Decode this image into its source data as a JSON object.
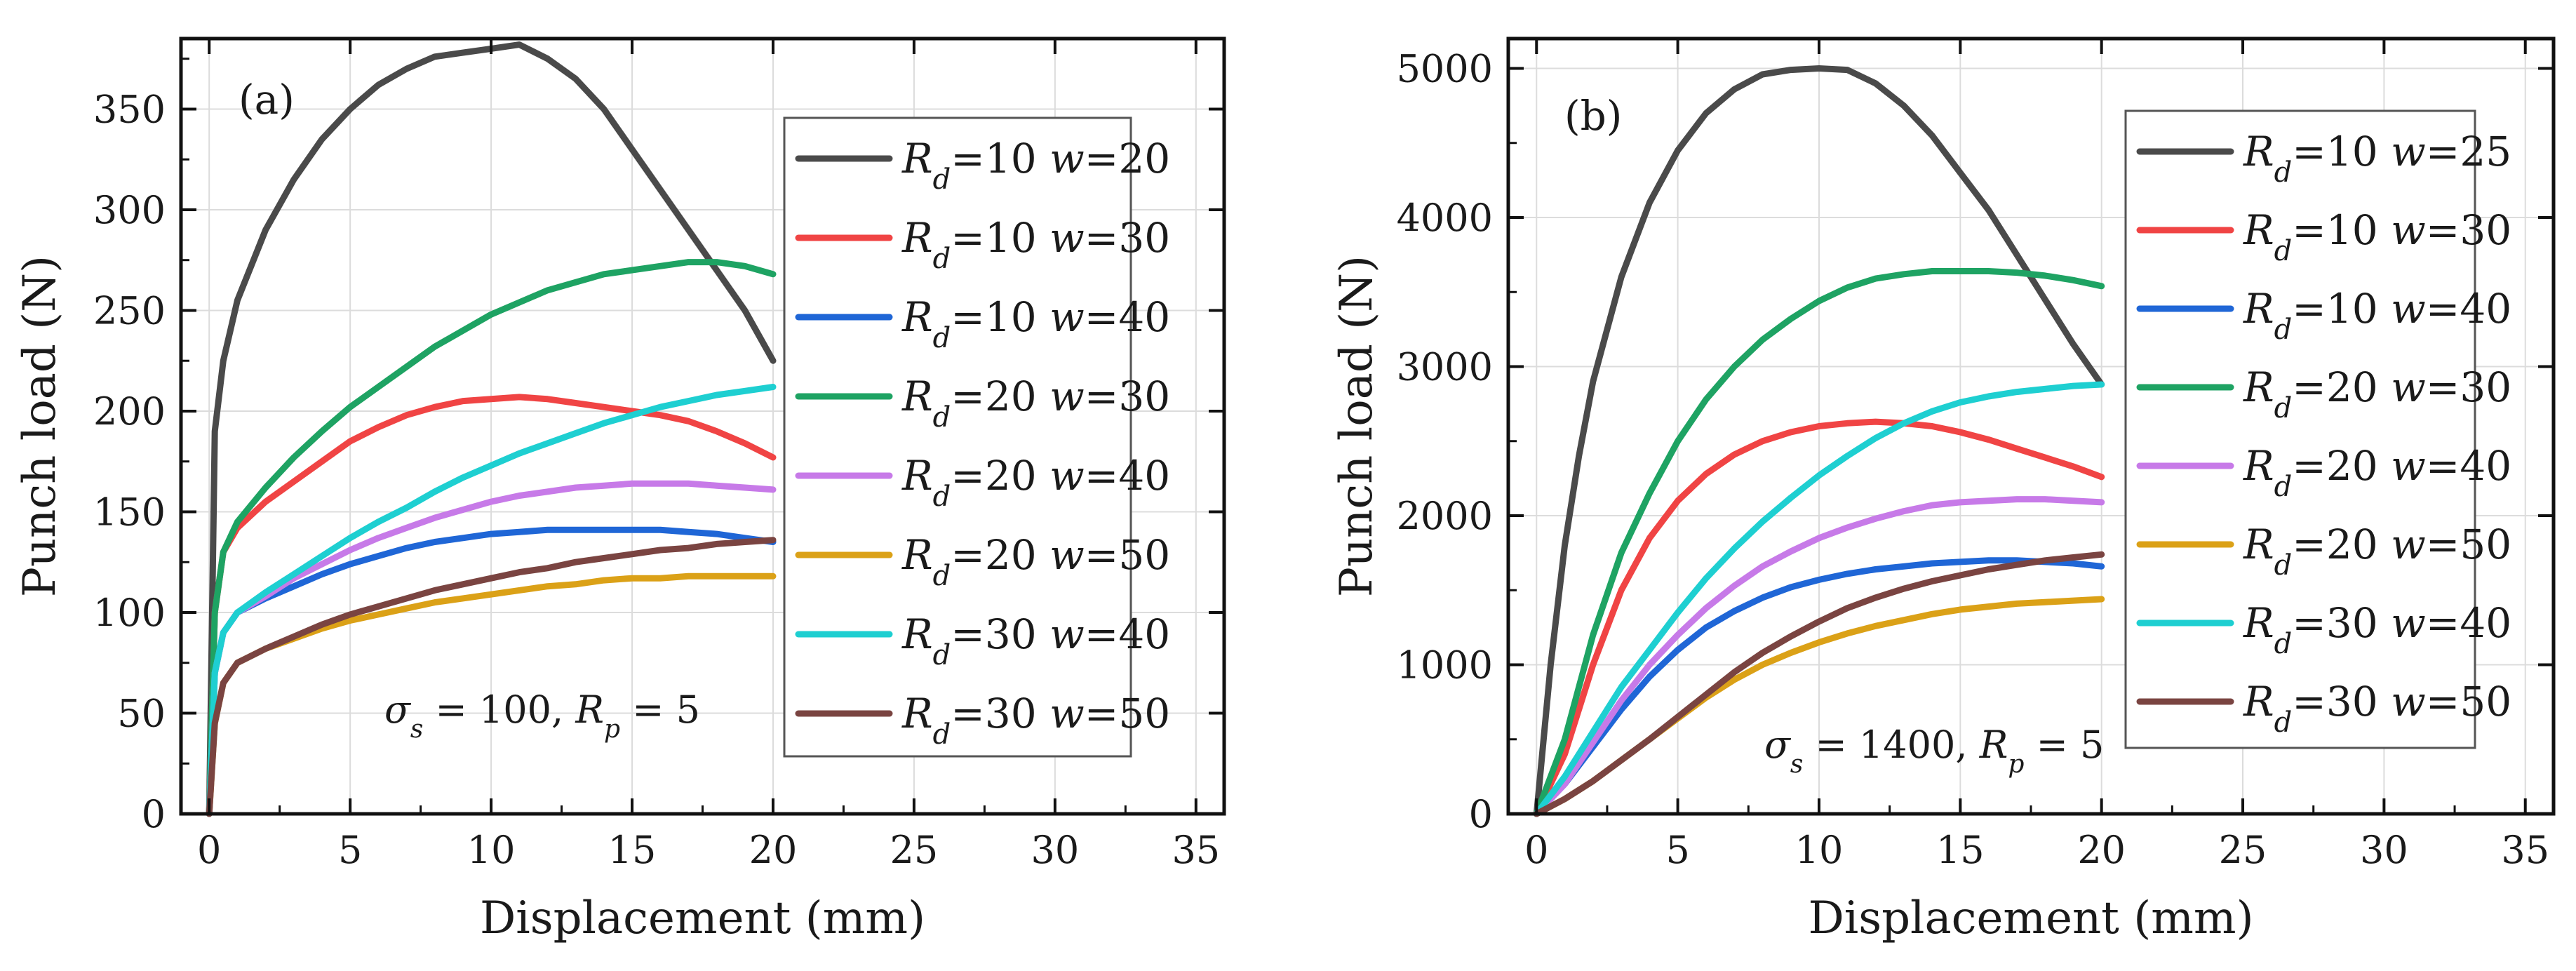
{
  "chart_data": [
    {
      "panel": "(a)",
      "type": "line",
      "xlabel": "Displacement (mm)",
      "ylabel": "Punch load (N)",
      "xlim": [
        -1,
        36
      ],
      "ylim": [
        0,
        385
      ],
      "xticks": [
        0,
        5,
        10,
        15,
        20,
        25,
        30,
        35
      ],
      "yticks": [
        0,
        50,
        100,
        150,
        200,
        250,
        300,
        350
      ],
      "grid": true,
      "legend_position": "right",
      "annotation": {
        "sigma": "σ",
        "sigma_sub": "s",
        "sigma_value": " = 100, ",
        "r": "R",
        "r_sub": "p",
        "r_value": " = 5"
      },
      "series": [
        {
          "rd": "R",
          "rd_sub": "d",
          "rd_value": "=10 ",
          "w": "w",
          "w_value": "=20",
          "color": "#4a4a4a",
          "x": [
            0,
            0.2,
            0.5,
            1,
            2,
            3,
            4,
            5,
            6,
            7,
            8,
            9,
            10,
            11,
            12,
            13,
            14,
            15,
            16,
            17,
            18,
            19,
            20
          ],
          "y": [
            0,
            190,
            225,
            255,
            290,
            315,
            335,
            350,
            362,
            370,
            376,
            378,
            380,
            382,
            375,
            365,
            350,
            330,
            310,
            290,
            270,
            250,
            225
          ]
        },
        {
          "rd": "R",
          "rd_sub": "d",
          "rd_value": "=10 ",
          "w": "w",
          "w_value": "=30",
          "color": "#f04444",
          "x": [
            0,
            0.2,
            0.5,
            1,
            2,
            3,
            4,
            5,
            6,
            7,
            8,
            9,
            10,
            11,
            12,
            13,
            14,
            15,
            16,
            17,
            18,
            19,
            20
          ],
          "y": [
            0,
            100,
            130,
            142,
            155,
            165,
            175,
            185,
            192,
            198,
            202,
            205,
            206,
            207,
            206,
            204,
            202,
            200,
            198,
            195,
            190,
            184,
            177
          ]
        },
        {
          "rd": "R",
          "rd_sub": "d",
          "rd_value": "=10 ",
          "w": "w",
          "w_value": "=40",
          "color": "#1f66d6",
          "x": [
            0,
            0.2,
            0.5,
            1,
            2,
            3,
            4,
            5,
            6,
            7,
            8,
            9,
            10,
            11,
            12,
            13,
            14,
            15,
            16,
            17,
            18,
            19,
            20
          ],
          "y": [
            0,
            70,
            90,
            100,
            107,
            113,
            119,
            124,
            128,
            132,
            135,
            137,
            139,
            140,
            141,
            141,
            141,
            141,
            141,
            140,
            139,
            137,
            135
          ]
        },
        {
          "rd": "R",
          "rd_sub": "d",
          "rd_value": "=20 ",
          "w": "w",
          "w_value": "=30",
          "color": "#1ea363",
          "x": [
            0,
            0.2,
            0.5,
            1,
            2,
            3,
            4,
            5,
            6,
            7,
            8,
            9,
            10,
            11,
            12,
            13,
            14,
            15,
            16,
            17,
            18,
            19,
            20
          ],
          "y": [
            0,
            100,
            130,
            145,
            162,
            177,
            190,
            202,
            212,
            222,
            232,
            240,
            248,
            254,
            260,
            264,
            268,
            270,
            272,
            274,
            274,
            272,
            268
          ]
        },
        {
          "rd": "R",
          "rd_sub": "d",
          "rd_value": "=20 ",
          "w": "w",
          "w_value": "=40",
          "color": "#c77ae8",
          "x": [
            0,
            0.2,
            0.5,
            1,
            2,
            3,
            4,
            5,
            6,
            7,
            8,
            9,
            10,
            11,
            12,
            13,
            14,
            15,
            16,
            17,
            18,
            19,
            20
          ],
          "y": [
            0,
            70,
            90,
            100,
            108,
            117,
            124,
            131,
            137,
            142,
            147,
            151,
            155,
            158,
            160,
            162,
            163,
            164,
            164,
            164,
            163,
            162,
            161
          ]
        },
        {
          "rd": "R",
          "rd_sub": "d",
          "rd_value": "=20 ",
          "w": "w",
          "w_value": "=50",
          "color": "#dba117",
          "x": [
            0,
            0.2,
            0.5,
            1,
            2,
            3,
            4,
            5,
            6,
            7,
            8,
            9,
            10,
            11,
            12,
            13,
            14,
            15,
            16,
            17,
            18,
            19,
            20
          ],
          "y": [
            0,
            45,
            65,
            75,
            82,
            87,
            92,
            96,
            99,
            102,
            105,
            107,
            109,
            111,
            113,
            114,
            116,
            117,
            117,
            118,
            118,
            118,
            118
          ]
        },
        {
          "rd": "R",
          "rd_sub": "d",
          "rd_value": "=30 ",
          "w": "w",
          "w_value": "=40",
          "color": "#1ecfd1",
          "x": [
            0,
            0.2,
            0.5,
            1,
            2,
            3,
            4,
            5,
            6,
            7,
            8,
            9,
            10,
            11,
            12,
            13,
            14,
            15,
            16,
            17,
            18,
            19,
            20
          ],
          "y": [
            0,
            70,
            90,
            100,
            110,
            119,
            128,
            137,
            145,
            152,
            160,
            167,
            173,
            179,
            184,
            189,
            194,
            198,
            202,
            205,
            208,
            210,
            212
          ]
        },
        {
          "rd": "R",
          "rd_sub": "d",
          "rd_value": "=30 ",
          "w": "w",
          "w_value": "=50",
          "color": "#7a4441",
          "x": [
            0,
            0.2,
            0.5,
            1,
            2,
            3,
            4,
            5,
            6,
            7,
            8,
            9,
            10,
            11,
            12,
            13,
            14,
            15,
            16,
            17,
            18,
            19,
            20
          ],
          "y": [
            0,
            45,
            65,
            75,
            82,
            88,
            94,
            99,
            103,
            107,
            111,
            114,
            117,
            120,
            122,
            125,
            127,
            129,
            131,
            132,
            134,
            135,
            136
          ]
        }
      ]
    },
    {
      "panel": "(b)",
      "type": "line",
      "xlabel": "Displacement (mm)",
      "ylabel": "Punch load (N)",
      "xlim": [
        -1,
        36
      ],
      "ylim": [
        0,
        5200
      ],
      "xticks": [
        0,
        5,
        10,
        15,
        20,
        25,
        30,
        35
      ],
      "yticks": [
        0,
        1000,
        2000,
        3000,
        4000,
        5000
      ],
      "grid": true,
      "legend_position": "right",
      "annotation": {
        "sigma": "σ",
        "sigma_sub": "s",
        "sigma_value": " = 1400, ",
        "r": "R",
        "r_sub": "p",
        "r_value": " = 5"
      },
      "series": [
        {
          "rd": "R",
          "rd_sub": "d",
          "rd_value": "=10 ",
          "w": "w",
          "w_value": "=25",
          "color": "#4a4a4a",
          "x": [
            0,
            0.5,
            1,
            1.5,
            2,
            3,
            4,
            5,
            6,
            7,
            8,
            9,
            10,
            11,
            12,
            13,
            14,
            15,
            16,
            17,
            18,
            19,
            20
          ],
          "y": [
            0,
            1000,
            1800,
            2400,
            2900,
            3600,
            4100,
            4450,
            4700,
            4860,
            4960,
            4990,
            5000,
            4990,
            4900,
            4750,
            4550,
            4300,
            4050,
            3750,
            3450,
            3150,
            2880
          ]
        },
        {
          "rd": "R",
          "rd_sub": "d",
          "rd_value": "=10 ",
          "w": "w",
          "w_value": "=30",
          "color": "#f04444",
          "x": [
            0,
            1,
            2,
            3,
            4,
            5,
            6,
            7,
            8,
            9,
            10,
            11,
            12,
            13,
            14,
            15,
            16,
            17,
            18,
            19,
            20
          ],
          "y": [
            0,
            400,
            1000,
            1500,
            1850,
            2100,
            2280,
            2410,
            2500,
            2560,
            2600,
            2620,
            2630,
            2620,
            2600,
            2560,
            2510,
            2450,
            2390,
            2330,
            2260
          ]
        },
        {
          "rd": "R",
          "rd_sub": "d",
          "rd_value": "=10 ",
          "w": "w",
          "w_value": "=40",
          "color": "#1f66d6",
          "x": [
            0,
            1,
            2,
            3,
            4,
            5,
            6,
            7,
            8,
            9,
            10,
            11,
            12,
            13,
            14,
            15,
            16,
            17,
            18,
            19,
            20
          ],
          "y": [
            0,
            200,
            450,
            700,
            920,
            1100,
            1250,
            1360,
            1450,
            1520,
            1570,
            1610,
            1640,
            1660,
            1680,
            1690,
            1700,
            1700,
            1690,
            1680,
            1660
          ]
        },
        {
          "rd": "R",
          "rd_sub": "d",
          "rd_value": "=20 ",
          "w": "w",
          "w_value": "=30",
          "color": "#1ea363",
          "x": [
            0,
            1,
            2,
            3,
            4,
            5,
            6,
            7,
            8,
            9,
            10,
            11,
            12,
            13,
            14,
            15,
            16,
            17,
            18,
            19,
            20
          ],
          "y": [
            0,
            500,
            1200,
            1750,
            2150,
            2500,
            2780,
            3000,
            3180,
            3320,
            3440,
            3530,
            3590,
            3620,
            3640,
            3640,
            3640,
            3630,
            3610,
            3580,
            3540
          ]
        },
        {
          "rd": "R",
          "rd_sub": "d",
          "rd_value": "=20 ",
          "w": "w",
          "w_value": "=40",
          "color": "#c77ae8",
          "x": [
            0,
            1,
            2,
            3,
            4,
            5,
            6,
            7,
            8,
            9,
            10,
            11,
            12,
            13,
            14,
            15,
            16,
            17,
            18,
            19,
            20
          ],
          "y": [
            0,
            200,
            480,
            760,
            1000,
            1200,
            1380,
            1530,
            1660,
            1760,
            1850,
            1920,
            1980,
            2030,
            2070,
            2090,
            2100,
            2110,
            2110,
            2100,
            2090
          ]
        },
        {
          "rd": "R",
          "rd_sub": "d",
          "rd_value": "=20 ",
          "w": "w",
          "w_value": "=50",
          "color": "#dba117",
          "x": [
            0,
            1,
            2,
            3,
            4,
            5,
            6,
            7,
            8,
            9,
            10,
            11,
            12,
            13,
            14,
            15,
            16,
            17,
            18,
            19,
            20
          ],
          "y": [
            0,
            100,
            220,
            360,
            500,
            640,
            780,
            900,
            1000,
            1080,
            1150,
            1210,
            1260,
            1300,
            1340,
            1370,
            1390,
            1410,
            1420,
            1430,
            1440
          ]
        },
        {
          "rd": "R",
          "rd_sub": "d",
          "rd_value": "=30 ",
          "w": "w",
          "w_value": "=40",
          "color": "#1ecfd1",
          "x": [
            0,
            1,
            2,
            3,
            4,
            5,
            6,
            7,
            8,
            9,
            10,
            11,
            12,
            13,
            14,
            15,
            16,
            17,
            18,
            19,
            20
          ],
          "y": [
            0,
            250,
            550,
            850,
            1100,
            1350,
            1580,
            1780,
            1960,
            2120,
            2270,
            2400,
            2520,
            2620,
            2700,
            2760,
            2800,
            2830,
            2850,
            2870,
            2880
          ]
        },
        {
          "rd": "R",
          "rd_sub": "d",
          "rd_value": "=30 ",
          "w": "w",
          "w_value": "=50",
          "color": "#7a4441",
          "x": [
            0,
            1,
            2,
            3,
            4,
            5,
            6,
            7,
            8,
            9,
            10,
            11,
            12,
            13,
            14,
            15,
            16,
            17,
            18,
            19,
            20
          ],
          "y": [
            0,
            100,
            220,
            360,
            500,
            650,
            800,
            950,
            1080,
            1190,
            1290,
            1380,
            1450,
            1510,
            1560,
            1600,
            1640,
            1670,
            1700,
            1720,
            1740
          ]
        }
      ]
    }
  ]
}
